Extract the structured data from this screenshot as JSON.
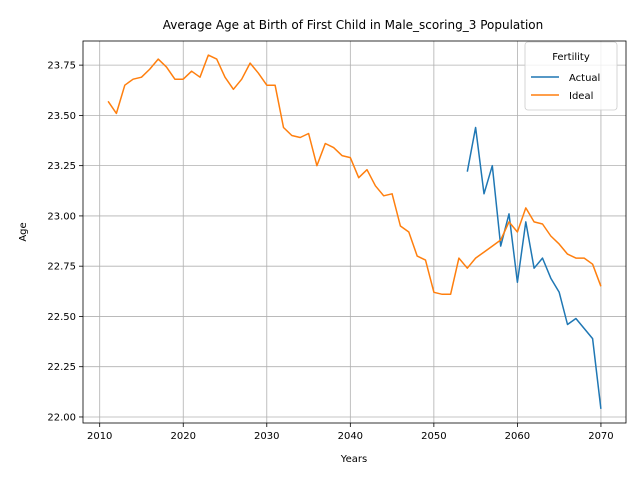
{
  "chart_data": {
    "type": "line",
    "title": "Average Age at Birth of First Child in Male_scoring_3 Population",
    "xlabel": "Years",
    "ylabel": "Age",
    "xlim": [
      2008,
      2073
    ],
    "ylim": [
      21.97,
      23.87
    ],
    "xticks": [
      2010,
      2020,
      2030,
      2040,
      2050,
      2060,
      2070
    ],
    "yticks": [
      22.0,
      22.25,
      22.5,
      22.75,
      23.0,
      23.25,
      23.5,
      23.75
    ],
    "ytick_labels": [
      "22.00",
      "22.25",
      "22.50",
      "22.75",
      "23.00",
      "23.25",
      "23.50",
      "23.75"
    ],
    "grid": true,
    "legend": {
      "title": "Fertility",
      "placement": "top-right"
    },
    "series": [
      {
        "name": "Actual",
        "color": "#1f77b4",
        "x": [
          2054,
          2055,
          2056,
          2057,
          2058,
          2059,
          2060,
          2061,
          2062,
          2063,
          2064,
          2065,
          2066,
          2067,
          2068,
          2069,
          2070
        ],
        "y": [
          23.22,
          23.44,
          23.11,
          23.25,
          22.85,
          23.01,
          22.67,
          22.97,
          22.74,
          22.79,
          22.69,
          22.62,
          22.46,
          22.49,
          22.44,
          22.39,
          22.04
        ]
      },
      {
        "name": "Ideal",
        "color": "#ff7f0e",
        "x": [
          2011,
          2012,
          2013,
          2014,
          2015,
          2016,
          2017,
          2018,
          2019,
          2020,
          2021,
          2022,
          2023,
          2024,
          2025,
          2026,
          2027,
          2028,
          2029,
          2030,
          2031,
          2032,
          2033,
          2034,
          2035,
          2036,
          2037,
          2038,
          2039,
          2040,
          2041,
          2042,
          2043,
          2044,
          2045,
          2046,
          2047,
          2048,
          2049,
          2050,
          2051,
          2052,
          2053,
          2054,
          2055,
          2056,
          2057,
          2058,
          2059,
          2060,
          2061,
          2062,
          2063,
          2064,
          2065,
          2066,
          2067,
          2068,
          2069,
          2070
        ],
        "y": [
          23.57,
          23.51,
          23.65,
          23.68,
          23.69,
          23.73,
          23.78,
          23.74,
          23.68,
          23.68,
          23.72,
          23.69,
          23.8,
          23.78,
          23.69,
          23.63,
          23.68,
          23.76,
          23.71,
          23.65,
          23.65,
          23.44,
          23.4,
          23.39,
          23.41,
          23.25,
          23.36,
          23.34,
          23.3,
          23.29,
          23.19,
          23.23,
          23.15,
          23.1,
          23.11,
          22.95,
          22.92,
          22.8,
          22.78,
          22.62,
          22.61,
          22.61,
          22.79,
          22.74,
          22.79,
          22.82,
          22.85,
          22.88,
          22.97,
          22.92,
          23.04,
          22.97,
          22.96,
          22.9,
          22.86,
          22.81,
          22.79,
          22.79,
          22.76,
          22.65
        ]
      }
    ]
  }
}
